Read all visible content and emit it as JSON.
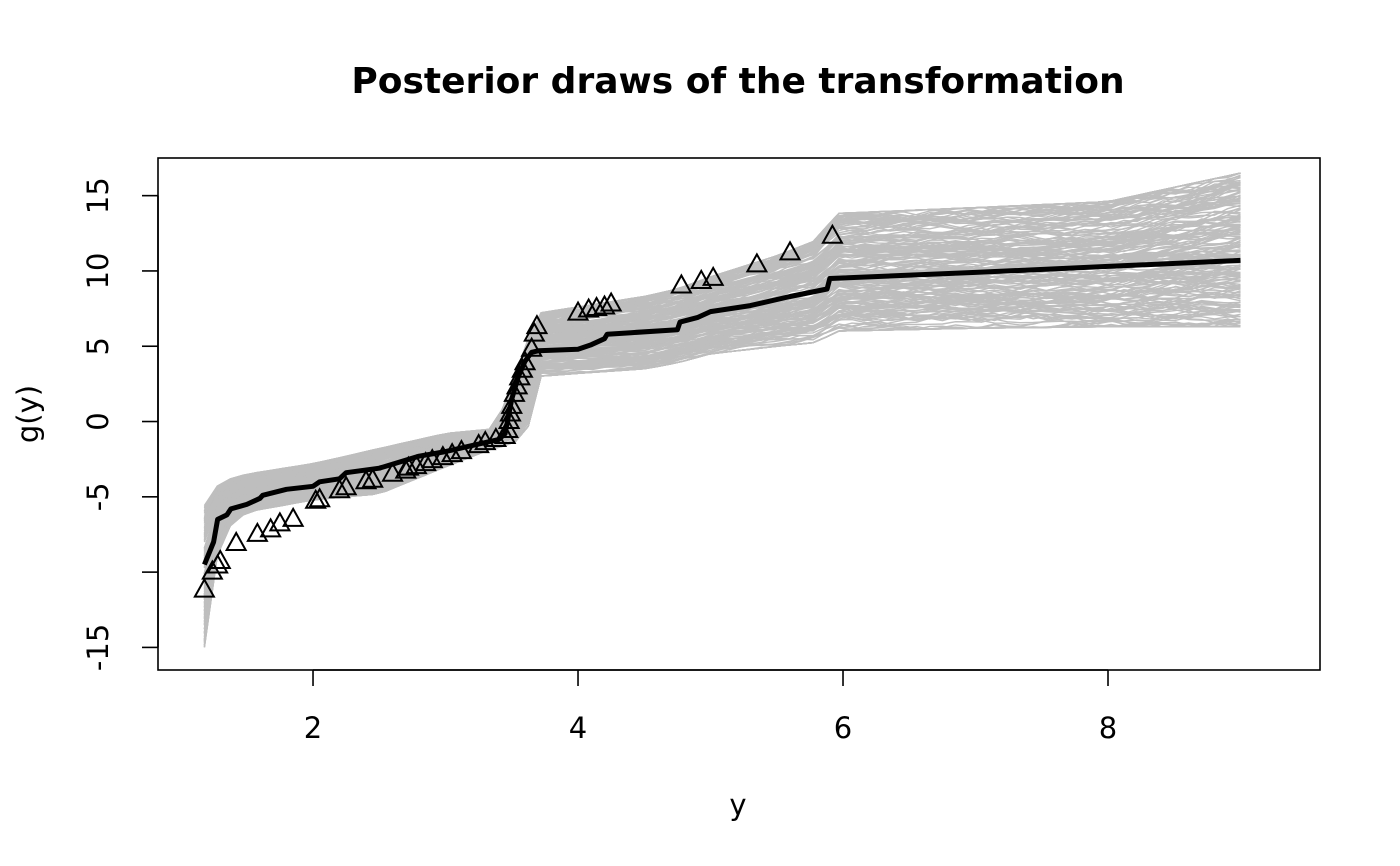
{
  "chart_data": {
    "type": "line",
    "title": "Posterior draws of the transformation",
    "xlabel": "y",
    "ylabel": "g(y)",
    "xlim": [
      0.83,
      9.6
    ],
    "ylim": [
      -16.5,
      17.5
    ],
    "x_ticks": [
      2,
      4,
      6,
      8
    ],
    "x_tick_labels": [
      "2",
      "4",
      "6",
      "8"
    ],
    "y_ticks": [
      -15,
      -10,
      -5,
      0,
      5,
      10,
      15
    ],
    "y_tick_labels": [
      "-15",
      "",
      "-5",
      "0",
      "5",
      "10",
      "15"
    ],
    "grid": false,
    "legend": "none",
    "colors": {
      "draws": "#bebebe",
      "mean": "#000000",
      "points": "#000000"
    },
    "series": [
      {
        "style": "thick black line",
        "x": [
          1.18,
          1.25,
          1.28,
          1.35,
          1.38,
          1.5,
          1.6,
          1.62,
          1.8,
          2.0,
          2.05,
          2.2,
          2.25,
          2.5,
          2.8,
          3.0,
          3.2,
          3.4,
          3.45,
          3.5,
          3.55,
          3.6,
          3.65,
          3.7,
          4.0,
          4.1,
          4.2,
          4.22,
          4.4,
          4.75,
          4.77,
          4.9,
          5.0,
          5.3,
          5.6,
          5.88,
          5.9,
          7.0,
          8.0,
          9.0
        ],
        "y": [
          -9.5,
          -8.0,
          -6.5,
          -6.2,
          -5.8,
          -5.5,
          -5.1,
          -4.9,
          -4.5,
          -4.3,
          -4.0,
          -3.8,
          -3.4,
          -3.1,
          -2.3,
          -2.0,
          -1.6,
          -1.2,
          -0.8,
          1.5,
          3.0,
          4.0,
          4.6,
          4.7,
          4.8,
          5.1,
          5.5,
          5.8,
          5.9,
          6.1,
          6.6,
          6.9,
          7.3,
          7.7,
          8.3,
          8.8,
          9.5,
          9.9,
          10.3,
          10.7
        ]
      },
      {
        "style": "open triangles",
        "x": [
          1.18,
          1.24,
          1.28,
          1.3,
          1.42,
          1.58,
          1.68,
          1.75,
          1.85,
          2.02,
          2.05,
          2.2,
          2.25,
          2.4,
          2.45,
          2.6,
          2.7,
          2.72,
          2.78,
          2.85,
          2.9,
          2.98,
          3.05,
          3.12,
          3.25,
          3.3,
          3.38,
          3.45,
          3.47,
          3.48,
          3.49,
          3.5,
          3.52,
          3.54,
          3.56,
          3.58,
          3.6,
          3.65,
          3.67,
          3.69,
          4.0,
          4.08,
          4.14,
          4.2,
          4.25,
          4.78,
          4.93,
          5.02,
          5.35,
          5.6,
          5.92
        ],
        "y": [
          -11.2,
          -10.0,
          -9.6,
          -9.3,
          -8.1,
          -7.5,
          -7.2,
          -6.8,
          -6.5,
          -5.3,
          -5.2,
          -4.6,
          -4.4,
          -4.0,
          -3.9,
          -3.5,
          -3.3,
          -3.1,
          -3.0,
          -2.8,
          -2.6,
          -2.4,
          -2.2,
          -2.0,
          -1.6,
          -1.4,
          -1.2,
          -1.0,
          -0.6,
          0.0,
          0.5,
          1.0,
          1.8,
          2.3,
          2.9,
          3.4,
          3.9,
          4.8,
          5.8,
          6.3,
          7.2,
          7.4,
          7.5,
          7.6,
          7.8,
          9.0,
          9.3,
          9.5,
          10.4,
          11.2,
          12.3
        ]
      }
    ],
    "band": {
      "style": "many thin gray posterior draw lines",
      "x": [
        1.18,
        1.3,
        1.5,
        2.0,
        2.5,
        3.0,
        3.35,
        3.5,
        3.55,
        3.65,
        3.7,
        4.0,
        4.5,
        4.75,
        5.0,
        5.5,
        5.85,
        5.9,
        7.0,
        8.0,
        9.0
      ],
      "lower": [
        -15.0,
        -7.5,
        -6.0,
        -5.2,
        -4.8,
        -3.0,
        -1.8,
        -1.5,
        -1.2,
        0.0,
        3.0,
        3.2,
        3.5,
        3.9,
        4.5,
        5.0,
        5.3,
        6.0,
        6.2,
        6.3,
        6.3
      ],
      "upper": [
        -5.5,
        -4.0,
        -3.5,
        -2.8,
        -1.8,
        -0.8,
        -0.5,
        2.0,
        4.0,
        6.0,
        7.2,
        7.6,
        8.3,
        8.8,
        9.6,
        11.0,
        12.2,
        13.8,
        14.2,
        14.6,
        16.5
      ]
    }
  }
}
